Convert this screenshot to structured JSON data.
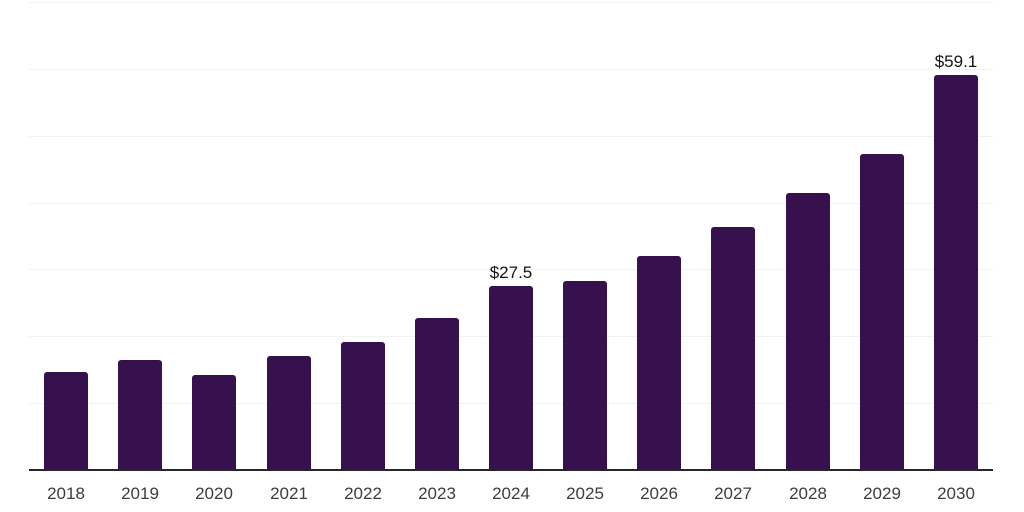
{
  "chart_data": {
    "type": "bar",
    "categories": [
      "2018",
      "2019",
      "2020",
      "2021",
      "2022",
      "2023",
      "2024",
      "2025",
      "2026",
      "2027",
      "2028",
      "2029",
      "2030"
    ],
    "values": [
      14.7,
      16.4,
      14.2,
      17.0,
      19.1,
      22.7,
      27.5,
      28.2,
      32.0,
      36.3,
      41.5,
      47.3,
      59.1
    ],
    "bar_value_labels": {
      "2024": "$27.5",
      "2030": "$59.1"
    },
    "xlabel": "",
    "ylabel": "",
    "ylim": [
      0,
      70
    ],
    "gridline_step": 10,
    "grid": true,
    "legend_position": "none",
    "colors": {
      "bar": "#37114e",
      "gridline": "#f2f2f2",
      "axis": "#262626",
      "tick_label": "#3d3d3d",
      "value_label": "#141414",
      "background": "#ffffff"
    }
  }
}
